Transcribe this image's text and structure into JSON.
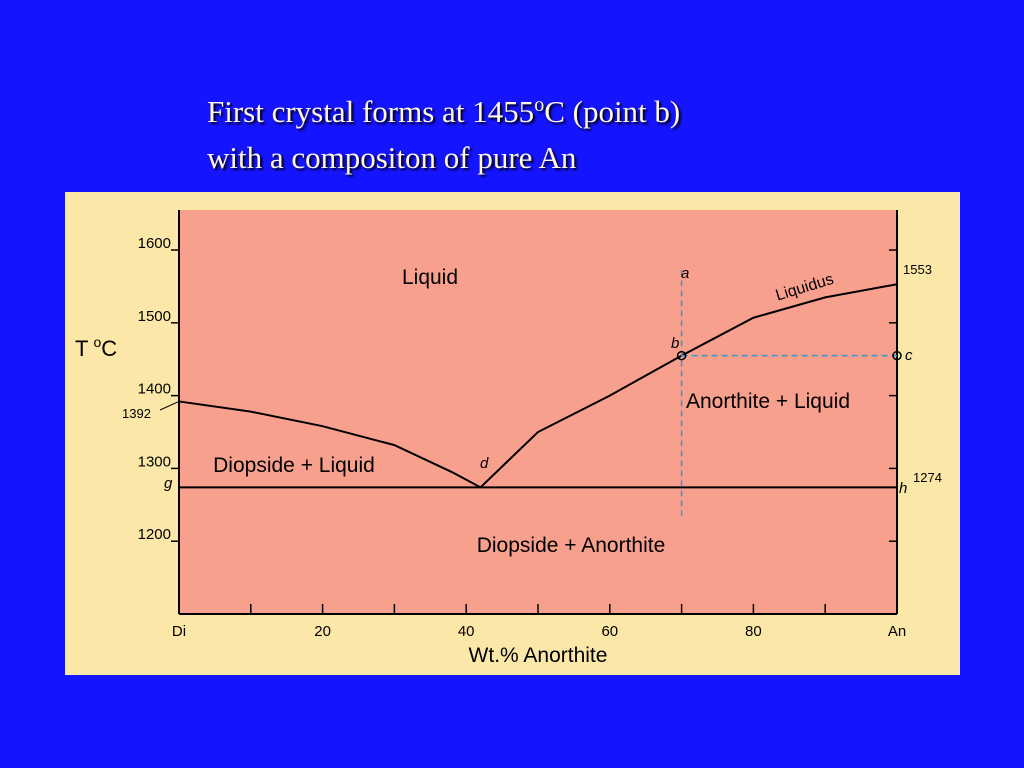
{
  "slide": {
    "title_lines": [
      [
        "First crystal forms at 1455",
        "o",
        "C (point b)"
      ],
      "with a compositon of pure An"
    ]
  },
  "chart_data": {
    "type": "line",
    "x_label": "Wt.% Anorthite",
    "y_label": [
      "T",
      "o",
      "C"
    ],
    "xlim": [
      0,
      100
    ],
    "ylim": [
      1100,
      1655
    ],
    "xticks": [
      {
        "value": 0,
        "label": "Di"
      },
      20,
      40,
      60,
      80,
      {
        "value": 100,
        "label": "An"
      }
    ],
    "x_minor_ticks": [
      10,
      30,
      50,
      70,
      90
    ],
    "yticks": [
      1200,
      1300,
      1400,
      1500,
      1600
    ],
    "series": [
      {
        "color": "#000000",
        "dashed": false,
        "x": [
          0,
          10,
          20,
          30,
          38,
          42
        ],
        "values": [
          1392,
          1378,
          1358,
          1332,
          1295,
          1274
        ]
      },
      {
        "color": "#000000",
        "dashed": false,
        "x": [
          42,
          50,
          60,
          70,
          80,
          90,
          100
        ],
        "values": [
          1274,
          1350,
          1400,
          1455,
          1507,
          1535,
          1553
        ]
      },
      {
        "color": "#000000",
        "dashed": false,
        "x": [
          0,
          100
        ],
        "values": [
          1274,
          1274
        ]
      },
      {
        "color": "#3399cc",
        "dashed": true,
        "x": [
          70,
          70
        ],
        "values": [
          1572,
          1235
        ]
      },
      {
        "color": "#3399cc",
        "dashed": true,
        "x": [
          70,
          100
        ],
        "values": [
          1455,
          1455
        ]
      }
    ],
    "points": [
      {
        "x": 70,
        "y": 1455
      },
      {
        "x": 100,
        "y": 1455
      }
    ],
    "marked_values": [
      1392,
      1553,
      1274
    ],
    "region_labels": [
      "Liquid",
      "Anorthite + Liquid",
      "Diopside + Liquid",
      "Diopside + Anorthite"
    ],
    "curve_label": "Liquidus",
    "point_labels": [
      "a",
      "b",
      "c",
      "d",
      "g",
      "h"
    ]
  }
}
